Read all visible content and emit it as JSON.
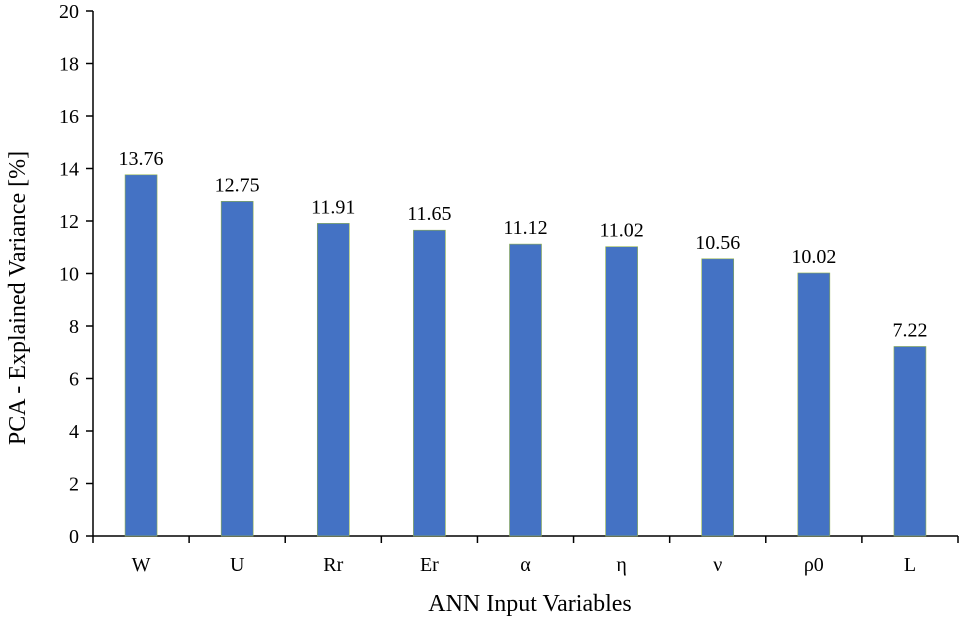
{
  "chart_data": {
    "type": "bar",
    "categories": [
      "W",
      "U",
      "Rr",
      "Er",
      "α",
      "η",
      "ν",
      "ρ0",
      "L"
    ],
    "values": [
      13.76,
      12.75,
      11.91,
      11.65,
      11.12,
      11.02,
      10.56,
      10.02,
      7.22
    ],
    "data_labels": [
      "13.76",
      "12.75",
      "11.91",
      "11.65",
      "11.12",
      "11.02",
      "10.56",
      "10.02",
      "7.22"
    ],
    "xlabel": "ANN Input Variables",
    "ylabel": "PCA - Explained Variance [%]",
    "ylim": [
      0,
      20
    ],
    "yticks": [
      0,
      2,
      4,
      6,
      8,
      10,
      12,
      14,
      16,
      18,
      20
    ],
    "grid": false,
    "legend": "none",
    "bar_color": "#4472C4"
  }
}
